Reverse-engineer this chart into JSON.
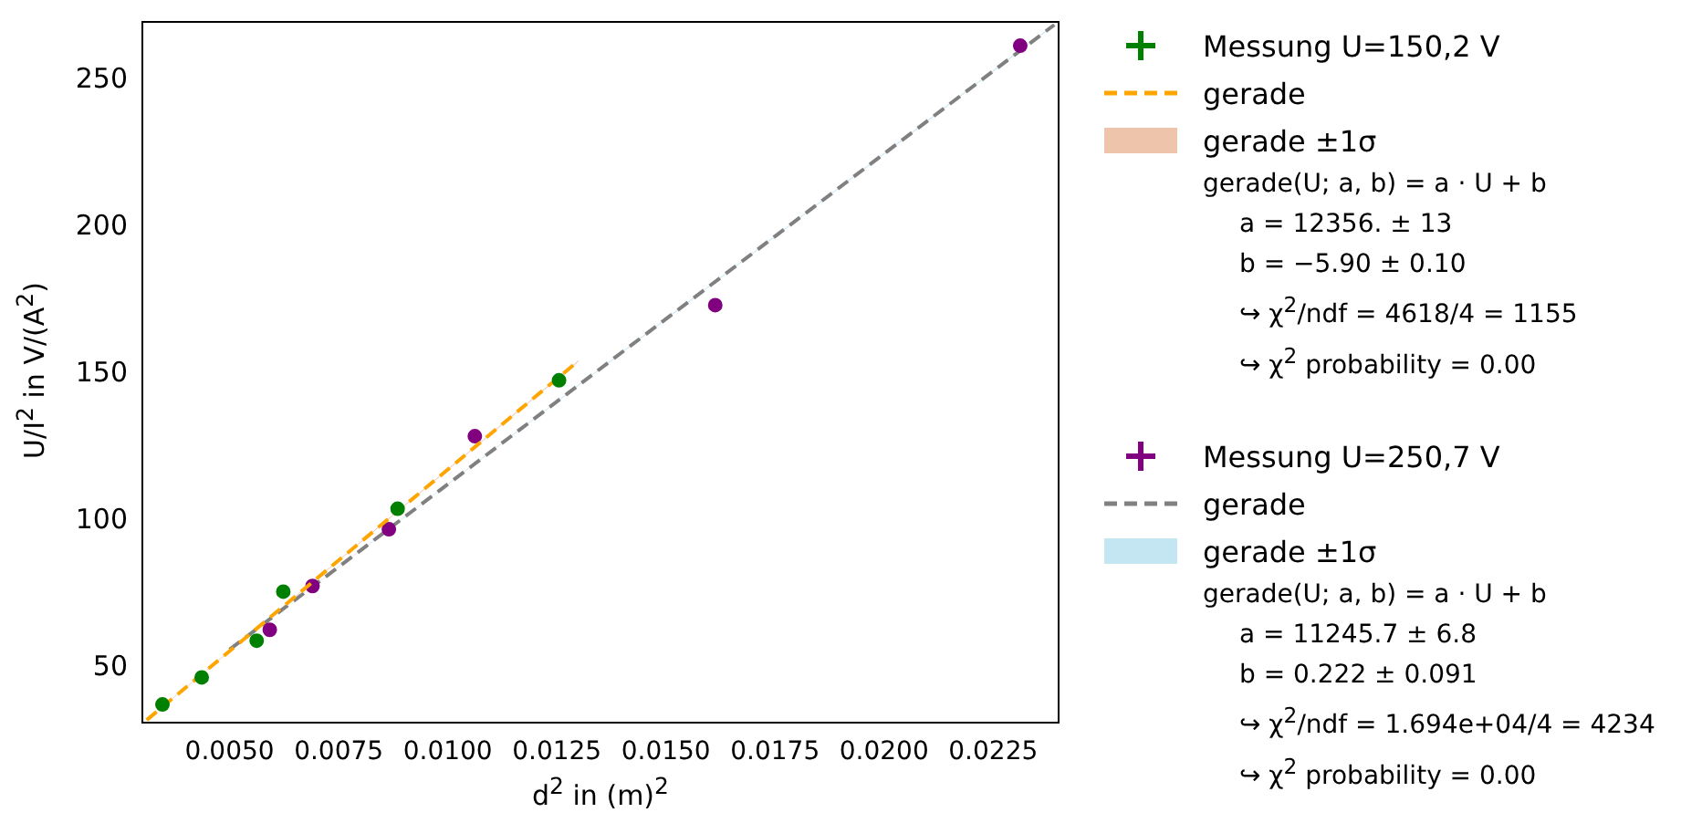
{
  "chart_data": {
    "type": "scatter",
    "xlabel": "d$^{2}$ in (m)$^{2}$",
    "ylabel": "U/I$^{2}$ in V/(A$^{2}$)",
    "xlim": [
      0.003,
      0.024
    ],
    "ylim": [
      31.5,
      270
    ],
    "xticks": [
      {
        "value": 0.005,
        "label": "0.0050"
      },
      {
        "value": 0.0075,
        "label": "0.0075"
      },
      {
        "value": 0.01,
        "label": "0.0100"
      },
      {
        "value": 0.0125,
        "label": "0.0125"
      },
      {
        "value": 0.015,
        "label": "0.0150"
      },
      {
        "value": 0.0175,
        "label": "0.0175"
      },
      {
        "value": 0.02,
        "label": "0.0200"
      },
      {
        "value": 0.0225,
        "label": "0.0225"
      }
    ],
    "yticks": [
      50,
      100,
      150,
      200,
      250
    ],
    "grid": false,
    "legend": "right",
    "series": [
      {
        "name": "Messung U=150,2 V",
        "type": "scatter",
        "marker": "circle",
        "color": "#008000",
        "x": [
          0.00346,
          0.00436,
          0.00562,
          0.00623,
          0.00885,
          0.01255
        ],
        "values": [
          37.7,
          46.9,
          59.4,
          76.1,
          104.3,
          148
        ]
      },
      {
        "name": "gerade",
        "type": "line",
        "marker": "none",
        "line_style": "dashed",
        "color": "#ffa500",
        "x": [
          0.0031,
          0.013
        ],
        "values": [
          32.4,
          154.7
        ]
      },
      {
        "name": "gerade ±1σ",
        "type": "area",
        "marker": "none",
        "color": "#eec4aa",
        "x": [
          0.0031,
          0.013
        ],
        "values": [
          null,
          null
        ],
        "lower": [
          32.3,
          154.5
        ],
        "upper": [
          32.5,
          154.9
        ]
      },
      {
        "name": "Messung U=250,7 V",
        "type": "scatter",
        "marker": "circle",
        "color": "#800080",
        "x": [
          0.00592,
          0.0069,
          0.00865,
          0.01062,
          0.01613,
          0.02312
        ],
        "values": [
          63.1,
          78,
          97.3,
          129,
          173.6,
          261.9
        ]
      },
      {
        "name": "gerade",
        "type": "line",
        "marker": "none",
        "line_style": "dashed",
        "color": "#808080",
        "x": [
          0.005,
          0.0239
        ],
        "values": [
          56.4,
          269
        ]
      },
      {
        "name": "gerade ±1σ",
        "type": "area",
        "marker": "none",
        "color": "#c4e5f2",
        "x": [
          0.005,
          0.0239
        ],
        "values": [
          null,
          null
        ],
        "lower": [
          56.3,
          268.8
        ],
        "upper": [
          56.5,
          269.2
        ]
      }
    ],
    "annotations": [
      "gerade(U; a, b) = a · U + b",
      "a = 12356. ± 13",
      "b = −5.90 ± 0.10",
      "↪ χ$^{2}$/ndf = 4618/4 = 1155",
      "↪ χ$^{2}$ probability = 0.00",
      "gerade(U; a, b) = a · U + b",
      "a = 11245.7 ± 6.8",
      "b = 0.222 ± 0.091",
      "↪ χ$^{2}$/ndf = 1.694e+04/4 = 4234",
      "↪ χ$^{2}$ probability = 0.00"
    ]
  }
}
